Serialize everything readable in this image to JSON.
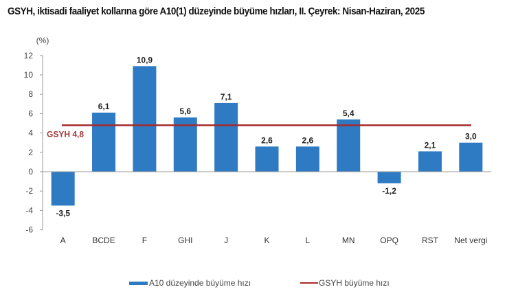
{
  "title": "GSYH, iktisadi faaliyet kollarına göre A10(1) düzeyinde büyüme hızları, II. Çeyrek: Nisan-Haziran, 2025",
  "colors": {
    "bar": "#2E7BC4",
    "reference_line": "#A52A2A",
    "reference_label": "#A33B3B"
  },
  "legend": {
    "bar_label": "A10 düzeyinde büyüme hızı",
    "line_label": "GSYH büyüme hızı"
  },
  "chart_data": {
    "type": "bar",
    "title": "GSYH, iktisadi faaliyet kollarına göre A10(1) düzeyinde büyüme hızları, II. Çeyrek: Nisan-Haziran, 2025",
    "xlabel": "",
    "ylabel": "(%)",
    "ylim": [
      -6,
      12
    ],
    "yticks": [
      12,
      10,
      8,
      6,
      4,
      2,
      0,
      -2,
      -4,
      -6
    ],
    "grid": false,
    "legend_position": "bottom",
    "categories": [
      "A",
      "BCDE",
      "F",
      "GHI",
      "J",
      "K",
      "L",
      "MN",
      "OPQ",
      "RST",
      "Net vergi"
    ],
    "series": [
      {
        "name": "A10 düzeyinde büyüme hızı",
        "type": "bar",
        "values": [
          -3.5,
          6.1,
          10.9,
          5.6,
          7.1,
          2.6,
          2.6,
          5.4,
          -1.2,
          2.1,
          3.0
        ],
        "labels": [
          "-3,5",
          "6,1",
          "10,9",
          "5,6",
          "7,1",
          "2,6",
          "2,6",
          "5,4",
          "-1,2",
          "2,1",
          "3,0"
        ]
      },
      {
        "name": "GSYH büyüme hızı",
        "type": "line",
        "value": 4.8,
        "label": "GSYH 4,8"
      }
    ]
  }
}
